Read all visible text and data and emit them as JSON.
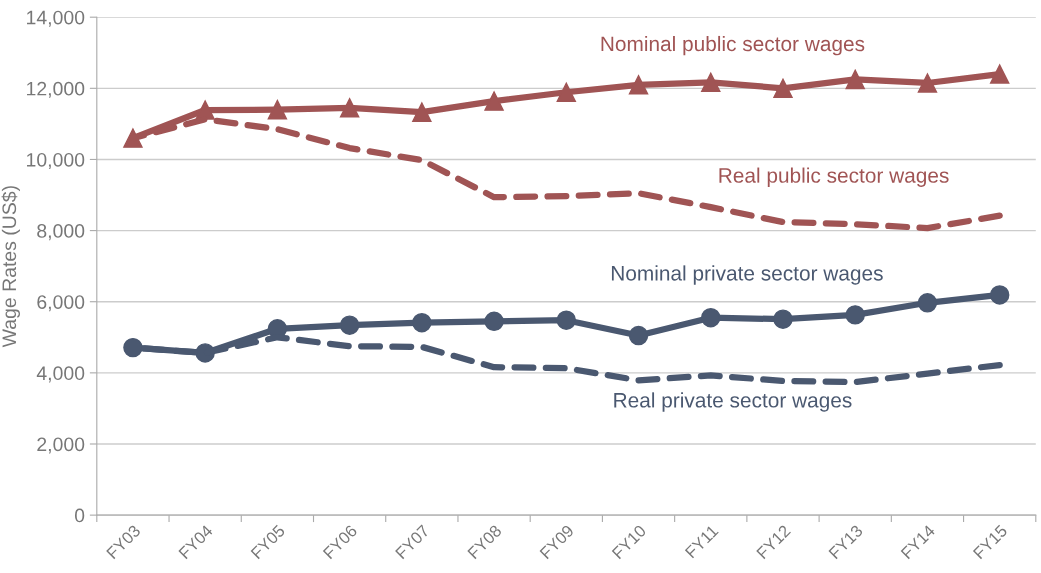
{
  "chart_data": {
    "type": "line",
    "ylabel": "Wage Rates (US$)",
    "categories": [
      "FY03",
      "FY04",
      "FY05",
      "FY06",
      "FY07",
      "FY08",
      "FY09",
      "FY10",
      "FY11",
      "FY12",
      "FY13",
      "FY14",
      "FY15"
    ],
    "series": [
      {
        "name": "Nominal public sector wages",
        "color": "#a05454",
        "marker": "triangle",
        "line_style": "solid",
        "values": [
          10600,
          11390,
          11400,
          11450,
          11330,
          11640,
          11890,
          12100,
          12170,
          12000,
          12250,
          12150,
          12400
        ]
      },
      {
        "name": "Real public sector wages",
        "color": "#a05454",
        "marker": "none",
        "line_style": "dashed",
        "values": [
          10600,
          11130,
          10850,
          10320,
          9980,
          8940,
          8970,
          9050,
          8660,
          8240,
          8180,
          8070,
          8420
        ]
      },
      {
        "name": "Nominal private sector wages",
        "color": "#4a5870",
        "marker": "circle",
        "line_style": "solid",
        "values": [
          4710,
          4560,
          5240,
          5340,
          5410,
          5450,
          5480,
          5050,
          5550,
          5510,
          5630,
          5970,
          6190
        ]
      },
      {
        "name": "Real private sector wages",
        "color": "#4a5870",
        "marker": "none",
        "line_style": "dashed",
        "values": [
          4710,
          4560,
          5000,
          4750,
          4730,
          4160,
          4130,
          3790,
          3930,
          3770,
          3740,
          3980,
          4220
        ]
      }
    ],
    "ylim": [
      0,
      14000
    ],
    "yticks": [
      {
        "value": 0,
        "label": "0"
      },
      {
        "value": 2000,
        "label": "2,000"
      },
      {
        "value": 4000,
        "label": "4,000"
      },
      {
        "value": 6000,
        "label": "6,000"
      },
      {
        "value": 8000,
        "label": "8,000"
      },
      {
        "value": 10000,
        "label": "10,000"
      },
      {
        "value": 12000,
        "label": "12,000"
      },
      {
        "value": 14000,
        "label": "14,000"
      }
    ],
    "grid": "y",
    "legend": false
  }
}
